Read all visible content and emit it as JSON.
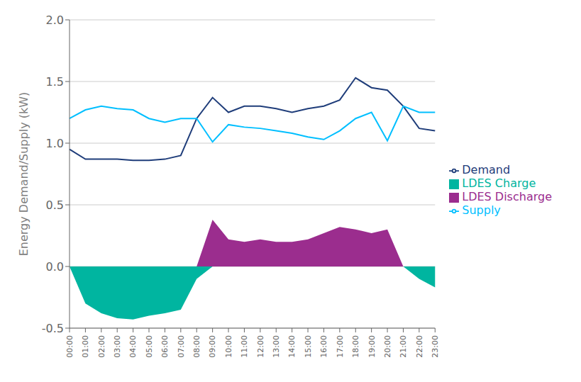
{
  "chart_data": {
    "type": "line",
    "ylabel": "Energy Demand/Supply (kW)",
    "categories": [
      "00:00",
      "01:00",
      "02:00",
      "03:00",
      "04:00",
      "05:00",
      "06:00",
      "07:00",
      "08:00",
      "09:00",
      "10:00",
      "11:00",
      "12:00",
      "13:00",
      "14:00",
      "15:00",
      "16:00",
      "17:00",
      "18:00",
      "19:00",
      "20:00",
      "21:00",
      "22:00",
      "23:00"
    ],
    "series": [
      {
        "name": "LDES Discharge",
        "type": "area",
        "color": "#9B2D8E",
        "values": [
          0.0,
          0.0,
          0.0,
          0.0,
          0.0,
          0.0,
          0.0,
          0.0,
          0.0,
          0.38,
          0.22,
          0.2,
          0.22,
          0.2,
          0.2,
          0.22,
          0.27,
          0.32,
          0.3,
          0.27,
          0.3,
          0.0,
          0.0,
          0.0
        ]
      },
      {
        "name": "LDES Charge",
        "type": "area",
        "color": "#00B5A0",
        "values": [
          0.0,
          -0.3,
          -0.38,
          -0.42,
          -0.43,
          -0.4,
          -0.38,
          -0.35,
          -0.1,
          0.0,
          0.0,
          0.0,
          0.0,
          0.0,
          0.0,
          0.0,
          0.0,
          0.0,
          0.0,
          0.0,
          0.0,
          0.0,
          -0.1,
          -0.17
        ]
      },
      {
        "name": "Demand",
        "type": "line",
        "color": "#1F3D7A",
        "values": [
          0.95,
          0.87,
          0.87,
          0.87,
          0.86,
          0.86,
          0.87,
          0.9,
          1.2,
          1.37,
          1.25,
          1.3,
          1.3,
          1.28,
          1.25,
          1.28,
          1.3,
          1.35,
          1.53,
          1.45,
          1.43,
          1.3,
          1.12,
          1.1
        ]
      },
      {
        "name": "Supply",
        "type": "line",
        "color": "#00BFFF",
        "values": [
          1.2,
          1.27,
          1.3,
          1.28,
          1.27,
          1.2,
          1.17,
          1.2,
          1.2,
          1.01,
          1.15,
          1.13,
          1.12,
          1.1,
          1.08,
          1.05,
          1.03,
          1.1,
          1.2,
          1.25,
          1.02,
          1.3,
          1.25,
          1.25
        ]
      }
    ],
    "ylim": [
      -0.5,
      2.0
    ],
    "yticks": [
      -0.5,
      {
        "value": 0.0,
        "label": "0.0"
      },
      0.5,
      {
        "value": 1.0,
        "label": "1.0"
      },
      1.5,
      {
        "value": 2.0,
        "label": "2.0"
      }
    ],
    "grid": true,
    "legend": "right"
  }
}
